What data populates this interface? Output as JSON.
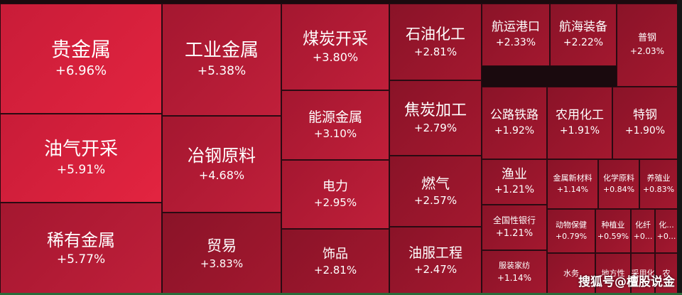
{
  "chart_data": {
    "type": "treemap",
    "items": [
      {
        "name": "贵金属",
        "value": "+6.96%"
      },
      {
        "name": "工业金属",
        "value": "+5.38%"
      },
      {
        "name": "煤炭开采",
        "value": "+3.80%"
      },
      {
        "name": "石油化工",
        "value": "+2.81%"
      },
      {
        "name": "航运港口",
        "value": "+2.33%"
      },
      {
        "name": "航海装备",
        "value": "+2.22%"
      },
      {
        "name": "普钢",
        "value": "+2.03%"
      },
      {
        "name": "油气开采",
        "value": "+5.91%"
      },
      {
        "name": "冶钢原料",
        "value": "+4.68%"
      },
      {
        "name": "能源金属",
        "value": "+3.10%"
      },
      {
        "name": "焦炭加工",
        "value": "+2.79%"
      },
      {
        "name": "公路铁路",
        "value": "+1.92%"
      },
      {
        "name": "农用化工",
        "value": "+1.91%"
      },
      {
        "name": "特钢",
        "value": "+1.90%"
      },
      {
        "name": "稀有金属",
        "value": "+5.77%"
      },
      {
        "name": "电力",
        "value": "+2.95%"
      },
      {
        "name": "燃气",
        "value": "+2.57%"
      },
      {
        "name": "渔业",
        "value": "+1.21%"
      },
      {
        "name": "金属新材料",
        "value": "+1.14%"
      },
      {
        "name": "化学原料",
        "value": "+0.84%"
      },
      {
        "name": "养殖业",
        "value": "+0.83%"
      },
      {
        "name": "贸易",
        "value": "+3.83%"
      },
      {
        "name": "饰品",
        "value": "+2.81%"
      },
      {
        "name": "油服工程",
        "value": "+2.47%"
      },
      {
        "name": "全国性银行",
        "value": "+1.21%"
      },
      {
        "name": "动物保健",
        "value": "+0.79%"
      },
      {
        "name": "种植业",
        "value": "+0.59%"
      },
      {
        "name": "化纤",
        "value": "+0..."
      },
      {
        "name": "化...",
        "value": "+0..."
      },
      {
        "name": "服装家纺",
        "value": "+1.14%"
      },
      {
        "name": "水务",
        "value": ""
      },
      {
        "name": "地方性",
        "value": ""
      },
      {
        "name": "采用化",
        "value": ""
      },
      {
        "name": "农",
        "value": ""
      }
    ]
  },
  "watermark": "搜狐号@檀股说金",
  "colors": {
    "hot": "#e32440",
    "mid": "#b51a36",
    "deep": "#8c1226",
    "border": "#2a0a12"
  }
}
